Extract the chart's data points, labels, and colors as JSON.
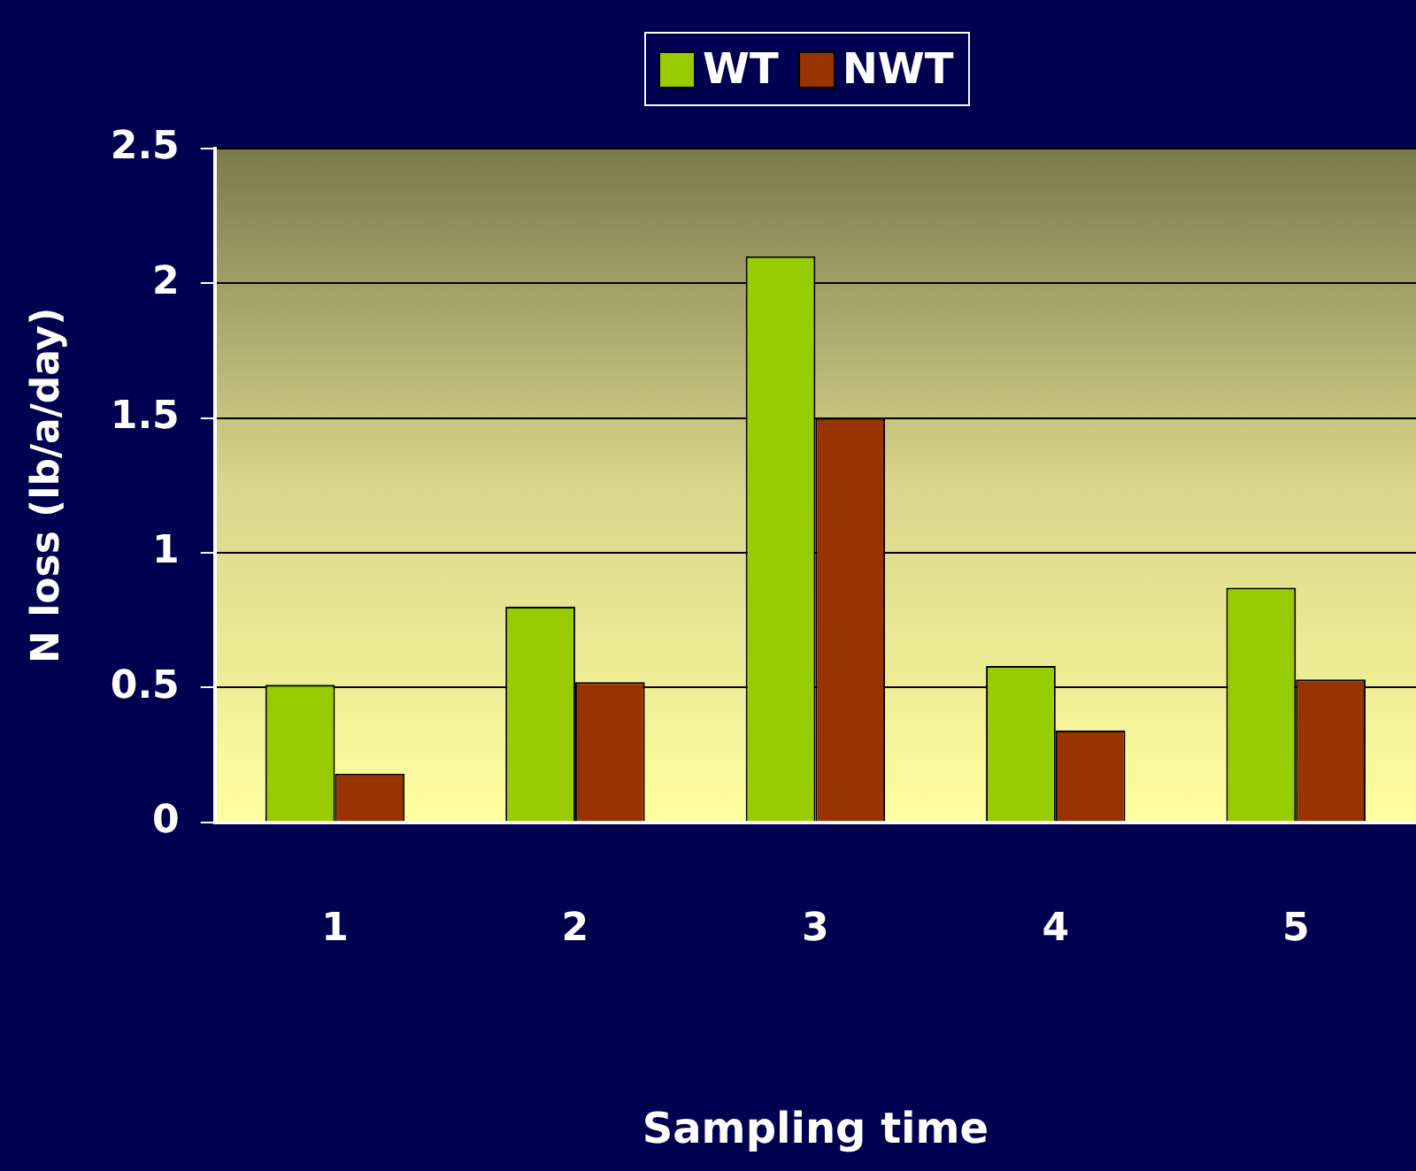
{
  "chart_data": {
    "type": "bar",
    "xlabel": "Sampling time",
    "ylabel": "N loss (lb/a/day)",
    "categories": [
      "1",
      "2",
      "3",
      "4",
      "5"
    ],
    "series": [
      {
        "name": "WT",
        "color": "#99cc00",
        "values": [
          0.51,
          0.8,
          2.1,
          0.58,
          0.87
        ]
      },
      {
        "name": "NWT",
        "color": "#993300",
        "values": [
          0.18,
          0.52,
          1.5,
          0.34,
          0.53
        ]
      }
    ],
    "ylim": [
      0,
      2.5
    ],
    "yticks": [
      0,
      0.5,
      1,
      1.5,
      2,
      2.5
    ],
    "grid": "y",
    "legend": "top"
  }
}
